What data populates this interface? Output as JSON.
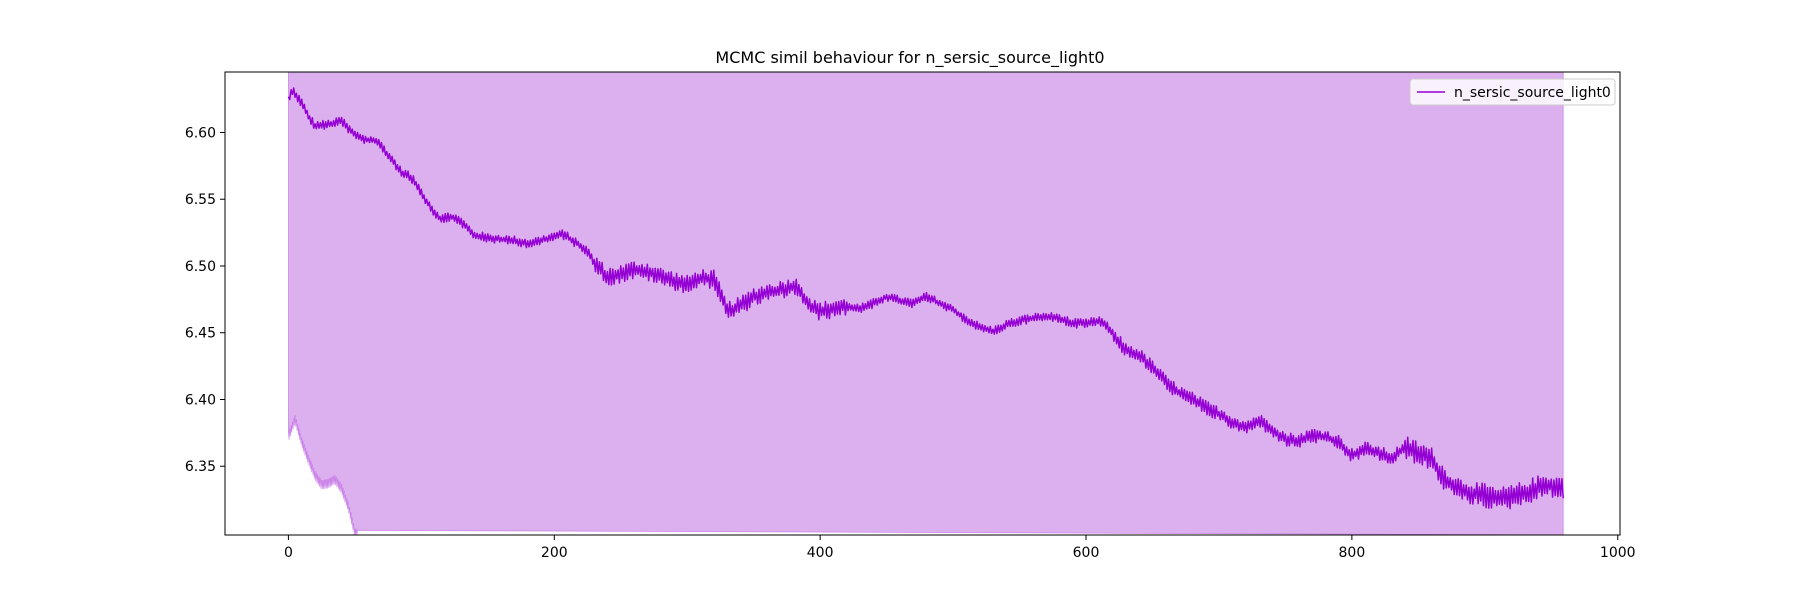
{
  "chart_data": {
    "type": "line",
    "title": "MCMC simil behaviour for n_sersic_source_light0",
    "xlabel": "",
    "ylabel": "",
    "xlim": [
      -47.7,
      1001.7
    ],
    "ylim": [
      6.2985,
      6.6453
    ],
    "x_ticks": [
      0,
      200,
      400,
      600,
      800,
      1000
    ],
    "x_tick_labels": [
      "0",
      "200",
      "400",
      "600",
      "800",
      "1000"
    ],
    "y_ticks": [
      6.35,
      6.4,
      6.45,
      6.5,
      6.55,
      6.6
    ],
    "y_tick_labels": [
      "6.35",
      "6.40",
      "6.45",
      "6.50",
      "6.55",
      "6.60"
    ],
    "grid": false,
    "legend": {
      "position": "top-right",
      "entries": [
        "n_sersic_source_light0"
      ]
    },
    "series": [
      {
        "name": "n_sersic_source_light0",
        "color": "#9400d3",
        "fill_color": "#dcb0ee",
        "x_max": 959,
        "anchors": [
          [
            0,
            6.624
          ],
          [
            3,
            6.632
          ],
          [
            10,
            6.622
          ],
          [
            15,
            6.612
          ],
          [
            20,
            6.605
          ],
          [
            30,
            6.606
          ],
          [
            35,
            6.607
          ],
          [
            40,
            6.609
          ],
          [
            45,
            6.603
          ],
          [
            50,
            6.598
          ],
          [
            55,
            6.596
          ],
          [
            60,
            6.594
          ],
          [
            65,
            6.594
          ],
          [
            70,
            6.59
          ],
          [
            75,
            6.583
          ],
          [
            80,
            6.577
          ],
          [
            85,
            6.57
          ],
          [
            90,
            6.568
          ],
          [
            95,
            6.563
          ],
          [
            100,
            6.555
          ],
          [
            105,
            6.547
          ],
          [
            110,
            6.54
          ],
          [
            115,
            6.535
          ],
          [
            120,
            6.537
          ],
          [
            125,
            6.536
          ],
          [
            130,
            6.533
          ],
          [
            135,
            6.528
          ],
          [
            140,
            6.523
          ],
          [
            150,
            6.521
          ],
          [
            160,
            6.52
          ],
          [
            170,
            6.519
          ],
          [
            180,
            6.517
          ],
          [
            190,
            6.519
          ],
          [
            200,
            6.522
          ],
          [
            205,
            6.524
          ],
          [
            210,
            6.522
          ],
          [
            215,
            6.518
          ],
          [
            220,
            6.515
          ],
          [
            225,
            6.511
          ],
          [
            230,
            6.503
          ],
          [
            235,
            6.497
          ],
          [
            240,
            6.492
          ],
          [
            250,
            6.494
          ],
          [
            260,
            6.497
          ],
          [
            270,
            6.496
          ],
          [
            280,
            6.492
          ],
          [
            290,
            6.489
          ],
          [
            300,
            6.486
          ],
          [
            310,
            6.491
          ],
          [
            320,
            6.49
          ],
          [
            325,
            6.479
          ],
          [
            330,
            6.466
          ],
          [
            340,
            6.47
          ],
          [
            350,
            6.477
          ],
          [
            360,
            6.48
          ],
          [
            370,
            6.482
          ],
          [
            380,
            6.485
          ],
          [
            385,
            6.482
          ],
          [
            390,
            6.473
          ],
          [
            395,
            6.468
          ],
          [
            400,
            6.466
          ],
          [
            410,
            6.468
          ],
          [
            420,
            6.47
          ],
          [
            430,
            6.468
          ],
          [
            440,
            6.472
          ],
          [
            450,
            6.477
          ],
          [
            460,
            6.474
          ],
          [
            470,
            6.472
          ],
          [
            480,
            6.477
          ],
          [
            490,
            6.472
          ],
          [
            500,
            6.467
          ],
          [
            510,
            6.46
          ],
          [
            520,
            6.454
          ],
          [
            530,
            6.451
          ],
          [
            540,
            6.456
          ],
          [
            550,
            6.459
          ],
          [
            560,
            6.461
          ],
          [
            570,
            6.462
          ],
          [
            580,
            6.461
          ],
          [
            590,
            6.457
          ],
          [
            600,
            6.457
          ],
          [
            610,
            6.459
          ],
          [
            615,
            6.456
          ],
          [
            620,
            6.449
          ],
          [
            625,
            6.443
          ],
          [
            630,
            6.437
          ],
          [
            640,
            6.433
          ],
          [
            650,
            6.424
          ],
          [
            660,
            6.413
          ],
          [
            670,
            6.405
          ],
          [
            680,
            6.4
          ],
          [
            690,
            6.394
          ],
          [
            700,
            6.389
          ],
          [
            710,
            6.383
          ],
          [
            720,
            6.379
          ],
          [
            730,
            6.384
          ],
          [
            740,
            6.378
          ],
          [
            750,
            6.37
          ],
          [
            760,
            6.369
          ],
          [
            770,
            6.373
          ],
          [
            780,
            6.372
          ],
          [
            790,
            6.368
          ],
          [
            800,
            6.358
          ],
          [
            810,
            6.363
          ],
          [
            820,
            6.36
          ],
          [
            830,
            6.356
          ],
          [
            840,
            6.364
          ],
          [
            850,
            6.36
          ],
          [
            860,
            6.355
          ],
          [
            870,
            6.34
          ],
          [
            880,
            6.333
          ],
          [
            890,
            6.33
          ],
          [
            900,
            6.328
          ],
          [
            910,
            6.325
          ],
          [
            920,
            6.327
          ],
          [
            930,
            6.33
          ],
          [
            940,
            6.334
          ],
          [
            950,
            6.336
          ],
          [
            959,
            6.333
          ]
        ],
        "band_lower_anchors": [
          [
            0,
            6.372
          ],
          [
            5,
            6.385
          ],
          [
            10,
            6.368
          ],
          [
            15,
            6.355
          ],
          [
            20,
            6.343
          ],
          [
            25,
            6.336
          ],
          [
            30,
            6.337
          ],
          [
            35,
            6.34
          ],
          [
            40,
            6.333
          ],
          [
            45,
            6.32
          ],
          [
            50,
            6.3
          ],
          [
            52,
            6.2985
          ]
        ]
      }
    ]
  }
}
